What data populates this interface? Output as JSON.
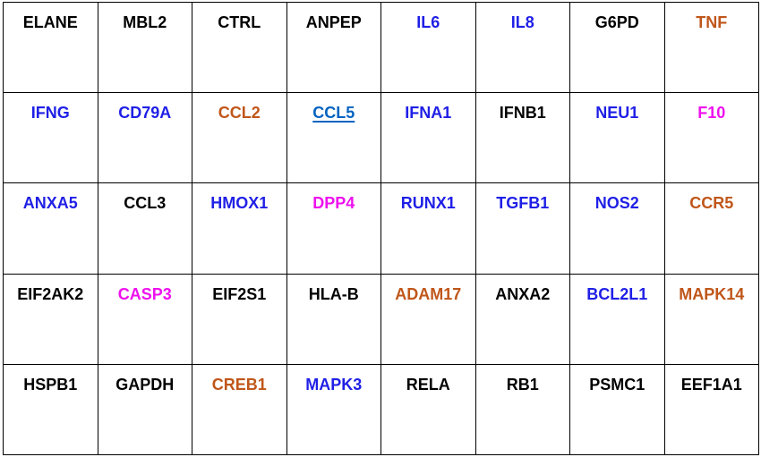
{
  "colors": {
    "black": "#000000",
    "blue": "#1f1fe6",
    "orange": "#c0561a",
    "magenta": "#ee11ee",
    "link": "#0563c1"
  },
  "grid": [
    [
      {
        "gene": "ELANE",
        "color": "black"
      },
      {
        "gene": "MBL2",
        "color": "black"
      },
      {
        "gene": "CTRL",
        "color": "black"
      },
      {
        "gene": "ANPEP",
        "color": "black"
      },
      {
        "gene": "IL6",
        "color": "blue"
      },
      {
        "gene": "IL8",
        "color": "blue"
      },
      {
        "gene": "G6PD",
        "color": "black"
      },
      {
        "gene": "TNF",
        "color": "orange"
      }
    ],
    [
      {
        "gene": "IFNG",
        "color": "blue"
      },
      {
        "gene": "CD79A",
        "color": "blue"
      },
      {
        "gene": "CCL2",
        "color": "orange"
      },
      {
        "gene": "CCL5",
        "color": "link",
        "underlined": true
      },
      {
        "gene": "IFNA1",
        "color": "blue"
      },
      {
        "gene": "IFNB1",
        "color": "black"
      },
      {
        "gene": "NEU1",
        "color": "blue"
      },
      {
        "gene": "F10",
        "color": "magenta"
      }
    ],
    [
      {
        "gene": "ANXA5",
        "color": "blue"
      },
      {
        "gene": "CCL3",
        "color": "black"
      },
      {
        "gene": "HMOX1",
        "color": "blue"
      },
      {
        "gene": "DPP4",
        "color": "magenta"
      },
      {
        "gene": "RUNX1",
        "color": "blue"
      },
      {
        "gene": "TGFB1",
        "color": "blue"
      },
      {
        "gene": "NOS2",
        "color": "blue"
      },
      {
        "gene": "CCR5",
        "color": "orange"
      }
    ],
    [
      {
        "gene": "EIF2AK2",
        "color": "black"
      },
      {
        "gene": "CASP3",
        "color": "magenta"
      },
      {
        "gene": "EIF2S1",
        "color": "black"
      },
      {
        "gene": "HLA-B",
        "color": "black"
      },
      {
        "gene": "ADAM17",
        "color": "orange"
      },
      {
        "gene": "ANXA2",
        "color": "black"
      },
      {
        "gene": "BCL2L1",
        "color": "blue"
      },
      {
        "gene": "MAPK14",
        "color": "orange"
      }
    ],
    [
      {
        "gene": "HSPB1",
        "color": "black"
      },
      {
        "gene": "GAPDH",
        "color": "black"
      },
      {
        "gene": "CREB1",
        "color": "orange"
      },
      {
        "gene": "MAPK3",
        "color": "blue"
      },
      {
        "gene": "RELA",
        "color": "black"
      },
      {
        "gene": "RB1",
        "color": "black"
      },
      {
        "gene": "PSMC1",
        "color": "black"
      },
      {
        "gene": "EEF1A1",
        "color": "black"
      }
    ]
  ]
}
